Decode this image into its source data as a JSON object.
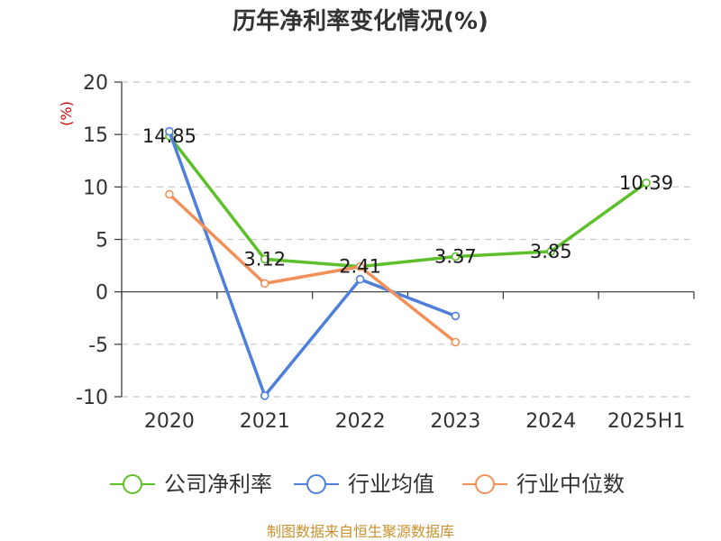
{
  "chart_data": {
    "type": "line",
    "title": "历年净利率变化情况(%)",
    "ylabel": "(%)",
    "categories": [
      "2020",
      "2021",
      "2022",
      "2023",
      "2024",
      "2025H1"
    ],
    "ylim": [
      -10,
      20
    ],
    "yticks": [
      20,
      15,
      10,
      5,
      0,
      -5,
      -10
    ],
    "grid": true,
    "legend_position": "bottom",
    "series": [
      {
        "name": "公司净利率",
        "color": "#5dc02a",
        "values": [
          14.85,
          3.12,
          2.41,
          3.37,
          3.85,
          10.39
        ],
        "labels": [
          "14.85",
          "3.12",
          "2.41",
          "3.37",
          "3.85",
          "10.39"
        ]
      },
      {
        "name": "行业均值",
        "color": "#4e7fdb",
        "values": [
          15.3,
          -9.9,
          1.2,
          -2.3,
          null,
          null
        ]
      },
      {
        "name": "行业中位数",
        "color": "#f2905a",
        "values": [
          9.3,
          0.8,
          2.4,
          -4.8,
          null,
          null
        ]
      }
    ]
  },
  "footer": {
    "source": "制图数据来自恒生聚源数据库"
  }
}
